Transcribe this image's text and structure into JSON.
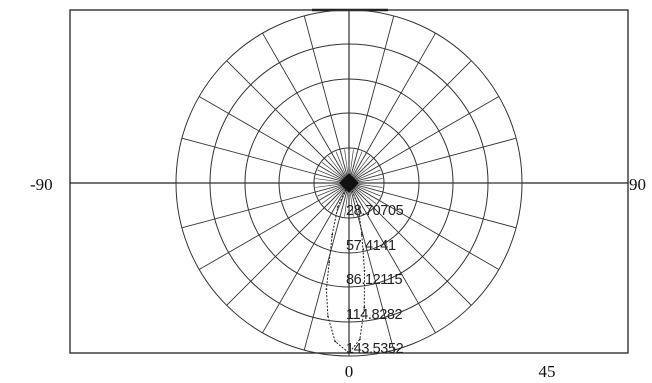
{
  "chart_data": {
    "type": "polar",
    "title": "",
    "angular_axis": {
      "range": [
        -90,
        90
      ],
      "labeled_ticks": [
        {
          "angle": -90,
          "text": "-90"
        },
        {
          "angle": 90,
          "text": "90"
        },
        {
          "angle": 0,
          "text": "0"
        },
        {
          "angle": 45,
          "text": "45"
        }
      ],
      "spoke_step_degrees": 15
    },
    "radial_axis": {
      "max": 143.5352,
      "rings": [
        28.70705,
        57.4141,
        86.12115,
        114.8282,
        143.5352
      ],
      "ring_labels": [
        "28.70705",
        "57.4141",
        "86.12115",
        "114.8282",
        "143.5352"
      ]
    },
    "series": [
      {
        "points": [
          {
            "angle": -25,
            "r": 22
          },
          {
            "angle": -18,
            "r": 45
          },
          {
            "angle": -14,
            "r": 68
          },
          {
            "angle": -12,
            "r": 90
          },
          {
            "angle": -9,
            "r": 112
          },
          {
            "angle": -5,
            "r": 132
          },
          {
            "angle": 0,
            "r": 141
          },
          {
            "angle": 4,
            "r": 130
          },
          {
            "angle": 7,
            "r": 104
          },
          {
            "angle": 10,
            "r": 74
          },
          {
            "angle": 14,
            "r": 44
          },
          {
            "angle": 22,
            "r": 20
          }
        ]
      }
    ],
    "grid": true,
    "legend": "none"
  }
}
